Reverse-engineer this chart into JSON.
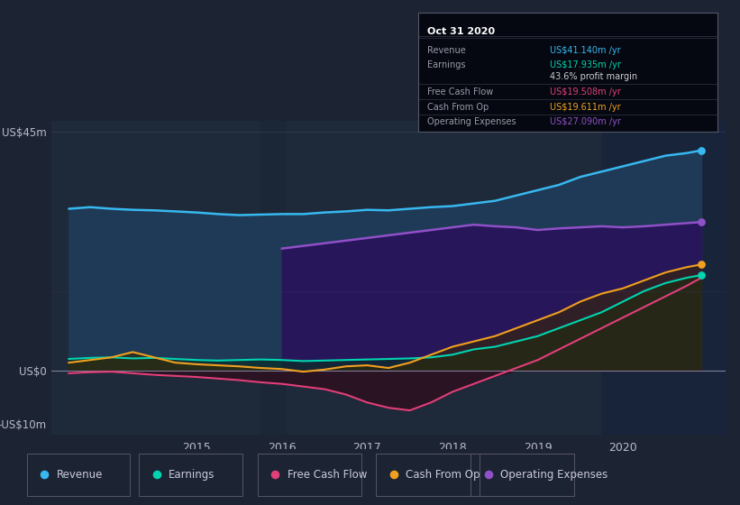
{
  "bg_color": "#1c2333",
  "plot_bg_color": "#202840",
  "chart_area_color": "#1e2a3a",
  "y_label_top": "US$45m",
  "y_label_zero": "US$0",
  "y_label_neg": "-US$10m",
  "x_ticks": [
    "2015",
    "2016",
    "2017",
    "2018",
    "2019",
    "2020"
  ],
  "ylim": [
    -12,
    47
  ],
  "xlim_start": 2013.3,
  "xlim_end": 2021.2,
  "legend_items": [
    {
      "label": "Revenue",
      "color": "#38b8f0"
    },
    {
      "label": "Earnings",
      "color": "#00d4b0"
    },
    {
      "label": "Free Cash Flow",
      "color": "#e0407a"
    },
    {
      "label": "Cash From Op",
      "color": "#f0a020"
    },
    {
      "label": "Operating Expenses",
      "color": "#9050c8"
    }
  ],
  "tooltip": {
    "title": "Oct 31 2020",
    "rows": [
      {
        "label": "Revenue",
        "value": "US$41.140m /yr",
        "value_color": "#38b8f0",
        "divider_after": false
      },
      {
        "label": "Earnings",
        "value": "US$17.935m /yr",
        "value_color": "#00d4b0",
        "divider_after": false
      },
      {
        "label": "",
        "value": "43.6% profit margin",
        "value_color": "#cccccc",
        "divider_after": true
      },
      {
        "label": "Free Cash Flow",
        "value": "US$19.508m /yr",
        "value_color": "#e0407a",
        "divider_after": true
      },
      {
        "label": "Cash From Op",
        "value": "US$19.611m /yr",
        "value_color": "#f0a020",
        "divider_after": true
      },
      {
        "label": "Operating Expenses",
        "value": "US$27.090m /yr",
        "value_color": "#9050c8",
        "divider_after": false
      }
    ]
  },
  "revenue_color": "#38b8f0",
  "earnings_color": "#00d4b0",
  "fcf_color": "#e0407a",
  "cashop_color": "#f0a020",
  "opex_color": "#9050c8",
  "fill_revenue": "#1e3d5c",
  "fill_opex": "#2a1850",
  "fill_cashop": "#4a3020",
  "fill_earnings": "#0a3028"
}
